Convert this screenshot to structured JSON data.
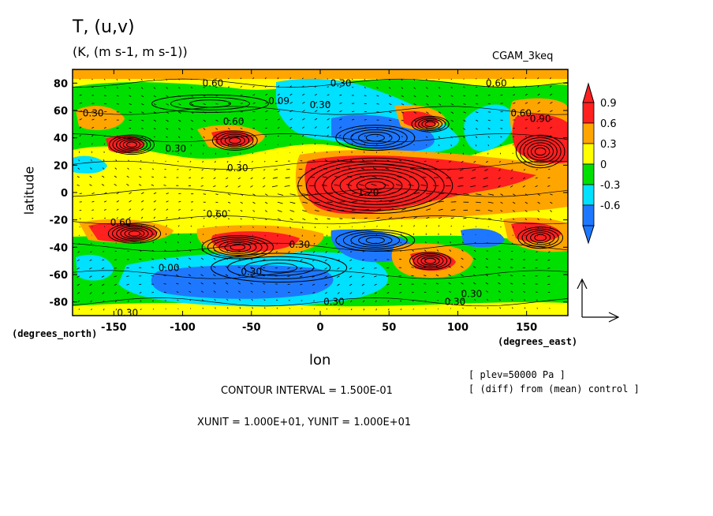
{
  "header": {
    "title": "T, (u,v)",
    "units": "(K, (m s-1, m s-1))",
    "run": "CGAM_3keq"
  },
  "footer": {
    "contour_interval": "CONTOUR INTERVAL = 1.500E-01",
    "xy_unit": "XUNIT = 1.000E+01, YUNIT = 1.000E+01",
    "note_plev": "[ plev=50000 Pa ]",
    "note_diff": "[ (diff) from (mean) control ]"
  },
  "chart_data": {
    "type": "heatmap",
    "xlabel": "lon",
    "ylabel": "latitude",
    "x_unit_label": "(degrees_east)",
    "y_unit_label": "(degrees_north)",
    "xlim": [
      -180,
      180
    ],
    "ylim": [
      -90,
      90
    ],
    "x_ticks": [
      -150,
      -100,
      -50,
      0,
      50,
      100,
      150
    ],
    "y_ticks": [
      80,
      60,
      40,
      20,
      0,
      -20,
      -40,
      -60,
      -80
    ],
    "colorbar": {
      "labels": [
        "0.9",
        "0.6",
        "0.3",
        "0",
        "-0.3",
        "-0.6"
      ],
      "colors": [
        "#ff2020",
        "#ffa500",
        "#ffff00",
        "#00e000",
        "#00e0ff",
        "#1e78ff"
      ]
    },
    "contour_labels": [
      {
        "lon": -78,
        "lat": 80,
        "text": "0.60"
      },
      {
        "lon": 15,
        "lat": 80,
        "text": "0.30"
      },
      {
        "lon": 128,
        "lat": 80,
        "text": "0.60"
      },
      {
        "lon": -30,
        "lat": 67,
        "text": "0.09"
      },
      {
        "lon": 0,
        "lat": 64,
        "text": "0.30"
      },
      {
        "lon": -165,
        "lat": 58,
        "text": "0.30"
      },
      {
        "lon": -63,
        "lat": 52,
        "text": "0.60"
      },
      {
        "lon": 146,
        "lat": 58,
        "text": "0.60"
      },
      {
        "lon": 160,
        "lat": 54,
        "text": "0.90"
      },
      {
        "lon": -105,
        "lat": 32,
        "text": "0.30"
      },
      {
        "lon": -60,
        "lat": 18,
        "text": "0.30"
      },
      {
        "lon": 35,
        "lat": 0,
        "text": "1.20"
      },
      {
        "lon": -145,
        "lat": -22,
        "text": "0.60"
      },
      {
        "lon": -75,
        "lat": -16,
        "text": "0.60"
      },
      {
        "lon": -15,
        "lat": -38,
        "text": "0.30"
      },
      {
        "lon": -110,
        "lat": -55,
        "text": "0.00"
      },
      {
        "lon": -50,
        "lat": -58,
        "text": "0.30"
      },
      {
        "lon": 10,
        "lat": -80,
        "text": "0.30"
      },
      {
        "lon": 98,
        "lat": -80,
        "text": "0.30"
      },
      {
        "lon": 110,
        "lat": -74,
        "text": "0.30"
      },
      {
        "lon": -140,
        "lat": -88,
        "text": "0.30"
      }
    ]
  }
}
